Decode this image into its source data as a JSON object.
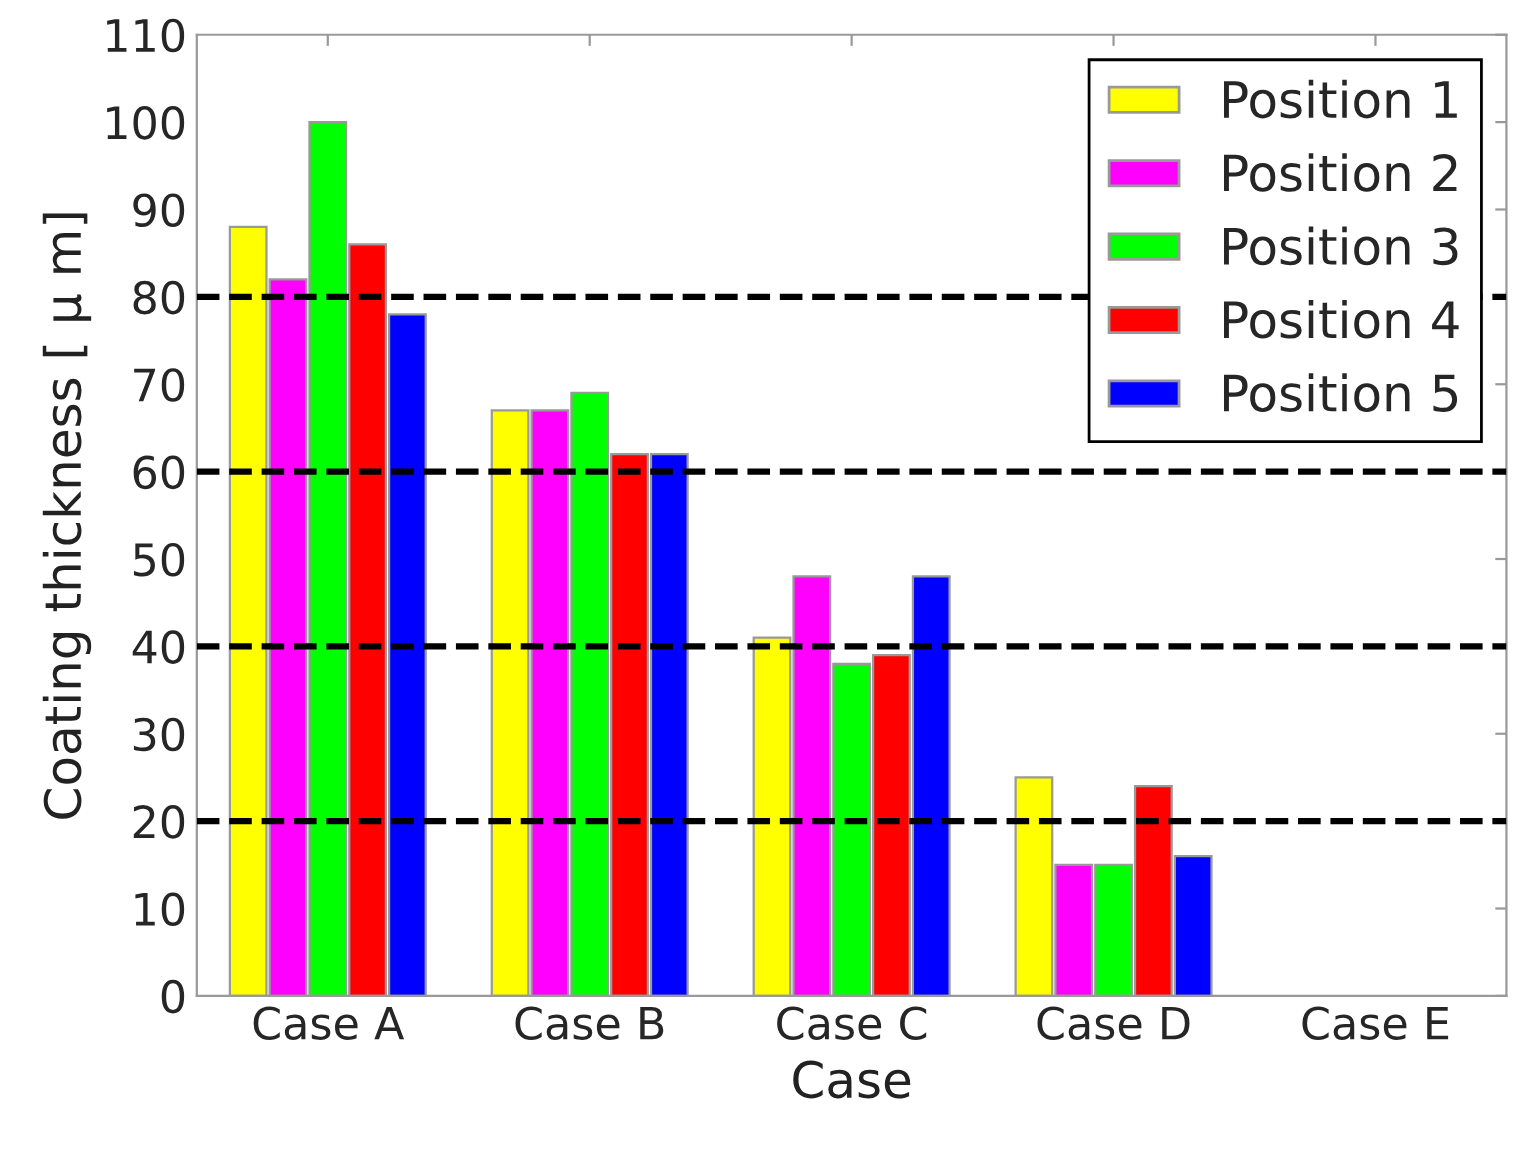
{
  "chart_data": {
    "type": "bar",
    "xlabel": "Case",
    "ylabel": "Coating thickness [ μ m]",
    "categories": [
      "Case A",
      "Case B",
      "Case C",
      "Case D",
      "Case E"
    ],
    "series": [
      {
        "name": "Position 1",
        "color": "#ffff00",
        "values": [
          88,
          67,
          41,
          25,
          null
        ]
      },
      {
        "name": "Position 2",
        "color": "#ff00ff",
        "values": [
          82,
          67,
          48,
          15,
          null
        ]
      },
      {
        "name": "Position 3",
        "color": "#00ff00",
        "values": [
          100,
          69,
          38,
          15,
          null
        ]
      },
      {
        "name": "Position 4",
        "color": "#ff0000",
        "values": [
          86,
          62,
          39,
          24,
          null
        ]
      },
      {
        "name": "Position 5",
        "color": "#0000ff",
        "values": [
          78,
          62,
          48,
          16,
          null
        ]
      }
    ],
    "ylim": [
      0,
      110
    ],
    "yticks": [
      0,
      10,
      20,
      30,
      40,
      50,
      60,
      70,
      80,
      90,
      100,
      110
    ],
    "ref_lines": [
      {
        "axis": "y",
        "value": 20,
        "color": "#000000",
        "line_style": "dashed"
      },
      {
        "axis": "y",
        "value": 40,
        "color": "#000000",
        "line_style": "dashed"
      },
      {
        "axis": "y",
        "value": 60,
        "color": "#000000",
        "line_style": "dashed"
      },
      {
        "axis": "y",
        "value": 80,
        "color": "#000000",
        "line_style": "dashed"
      }
    ],
    "grid": false,
    "legend": "top right"
  }
}
